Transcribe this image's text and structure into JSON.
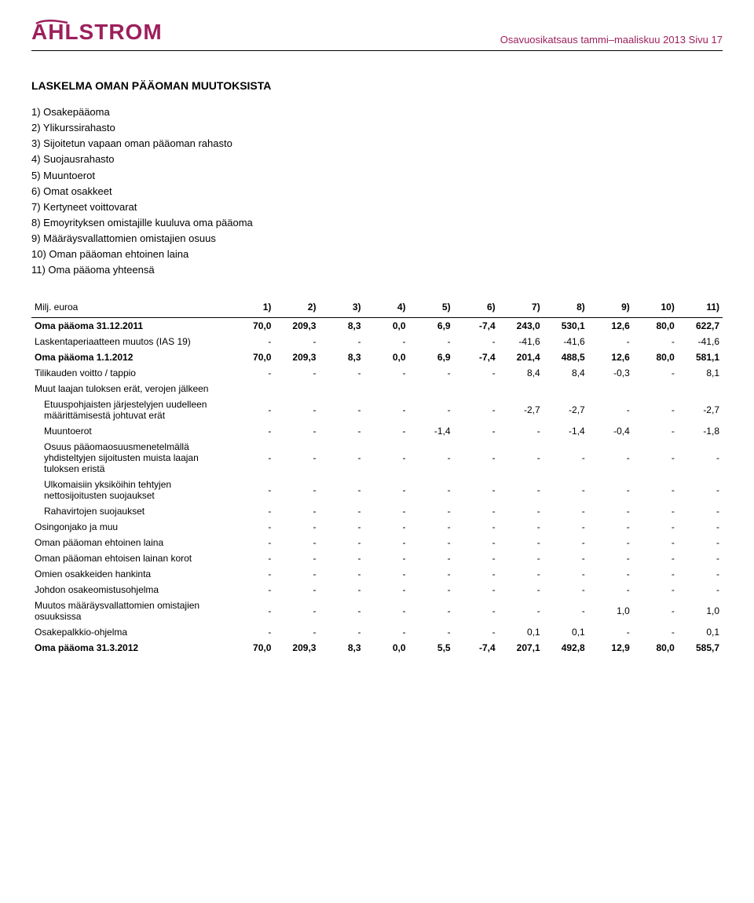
{
  "header": {
    "logo_text": "AHLSTROM",
    "logo_color": "#9c1f5c",
    "breadcrumb": "Osavuosikatsaus tammi–maaliskuu 2013 Sivu 17",
    "breadcrumb_color": "#9c1f5c"
  },
  "section_title": "LASKELMA OMAN PÄÄOMAN MUUTOKSISTA",
  "legend": [
    "1) Osakepääoma",
    "2) Ylikurssirahasto",
    "3) Sijoitetun vapaan oman pääoman rahasto",
    "4) Suojausrahasto",
    "5) Muuntoerot",
    "6) Omat osakkeet",
    "7) Kertyneet voittovarat",
    "8) Emoyrityksen omistajille kuuluva oma pääoma",
    "9) Määräysvallattomien omistajien osuus",
    "10) Oman pääoman ehtoinen laina",
    "11) Oma pääoma yhteensä"
  ],
  "table": {
    "row_label_header": "Milj. euroa",
    "columns": [
      "1)",
      "2)",
      "3)",
      "4)",
      "5)",
      "6)",
      "7)",
      "8)",
      "9)",
      "10)",
      "11)"
    ],
    "rows": [
      {
        "label": "Oma pääoma 31.12.2011",
        "cells": [
          "70,0",
          "209,3",
          "8,3",
          "0,0",
          "6,9",
          "-7,4",
          "243,0",
          "530,1",
          "12,6",
          "80,0",
          "622,7"
        ],
        "bold": true
      },
      {
        "label": "Laskentaperiaatteen muutos (IAS 19)",
        "cells": [
          "-",
          "-",
          "-",
          "-",
          "-",
          "-",
          "-41,6",
          "-41,6",
          "-",
          "-",
          "-41,6"
        ]
      },
      {
        "label": "Oma pääoma 1.1.2012",
        "cells": [
          "70,0",
          "209,3",
          "8,3",
          "0,0",
          "6,9",
          "-7,4",
          "201,4",
          "488,5",
          "12,6",
          "80,0",
          "581,1"
        ],
        "bold": true
      },
      {
        "label": "Tilikauden voitto / tappio",
        "cells": [
          "-",
          "-",
          "-",
          "-",
          "-",
          "-",
          "8,4",
          "8,4",
          "-0,3",
          "-",
          "8,1"
        ]
      },
      {
        "label": "Muut laajan tuloksen erät, verojen jälkeen",
        "cells": [
          "",
          "",
          "",
          "",
          "",
          "",
          "",
          "",
          "",
          "",
          ""
        ]
      },
      {
        "label": "Etuuspohjaisten järjestelyjen uudelleen määrittämisestä johtuvat erät",
        "cells": [
          "-",
          "-",
          "-",
          "-",
          "-",
          "-",
          "-2,7",
          "-2,7",
          "-",
          "-",
          "-2,7"
        ],
        "indent": true
      },
      {
        "label": "Muuntoerot",
        "cells": [
          "-",
          "-",
          "-",
          "-",
          "-1,4",
          "-",
          "-",
          "-1,4",
          "-0,4",
          "-",
          "-1,8"
        ],
        "indent": true
      },
      {
        "label": "Osuus pääomaosuusmenetelmällä yhdisteltyjen sijoitusten muista laajan tuloksen eristä",
        "cells": [
          "-",
          "-",
          "-",
          "-",
          "-",
          "-",
          "-",
          "-",
          "-",
          "-",
          "-"
        ],
        "indent": true
      },
      {
        "label": "Ulkomaisiin yksiköihin tehtyjen nettosijoitusten suojaukset",
        "cells": [
          "-",
          "-",
          "-",
          "-",
          "-",
          "-",
          "-",
          "-",
          "-",
          "-",
          "-"
        ],
        "indent": true
      },
      {
        "label": "Rahavirtojen suojaukset",
        "cells": [
          "-",
          "-",
          "-",
          "-",
          "-",
          "-",
          "-",
          "-",
          "-",
          "-",
          "-"
        ],
        "indent": true
      },
      {
        "label": "Osingonjako ja muu",
        "cells": [
          "-",
          "-",
          "-",
          "-",
          "-",
          "-",
          "-",
          "-",
          "-",
          "-",
          "-"
        ]
      },
      {
        "label": "Oman pääoman ehtoinen laina",
        "cells": [
          "-",
          "-",
          "-",
          "-",
          "-",
          "-",
          "-",
          "-",
          "-",
          "-",
          "-"
        ]
      },
      {
        "label": "Oman pääoman ehtoisen lainan korot",
        "cells": [
          "-",
          "-",
          "-",
          "-",
          "-",
          "-",
          "-",
          "-",
          "-",
          "-",
          "-"
        ]
      },
      {
        "label": "Omien osakkeiden hankinta",
        "cells": [
          "-",
          "-",
          "-",
          "-",
          "-",
          "-",
          "-",
          "-",
          "-",
          "-",
          "-"
        ]
      },
      {
        "label": "Johdon osakeomistusohjelma",
        "cells": [
          "-",
          "-",
          "-",
          "-",
          "-",
          "-",
          "-",
          "-",
          "-",
          "-",
          "-"
        ]
      },
      {
        "label": "Muutos määräysvallattomien omistajien osuuksissa",
        "cells": [
          "-",
          "-",
          "-",
          "-",
          "-",
          "-",
          "-",
          "-",
          "1,0",
          "-",
          "1,0"
        ]
      },
      {
        "label": "Osakepalkkio-ohjelma",
        "cells": [
          "-",
          "-",
          "-",
          "-",
          "-",
          "-",
          "0,1",
          "0,1",
          "-",
          "-",
          "0,1"
        ]
      },
      {
        "label": "Oma pääoma 31.3.2012",
        "cells": [
          "70,0",
          "209,3",
          "8,3",
          "0,0",
          "5,5",
          "-7,4",
          "207,1",
          "492,8",
          "12,9",
          "80,0",
          "585,7"
        ],
        "bold": true
      }
    ]
  }
}
